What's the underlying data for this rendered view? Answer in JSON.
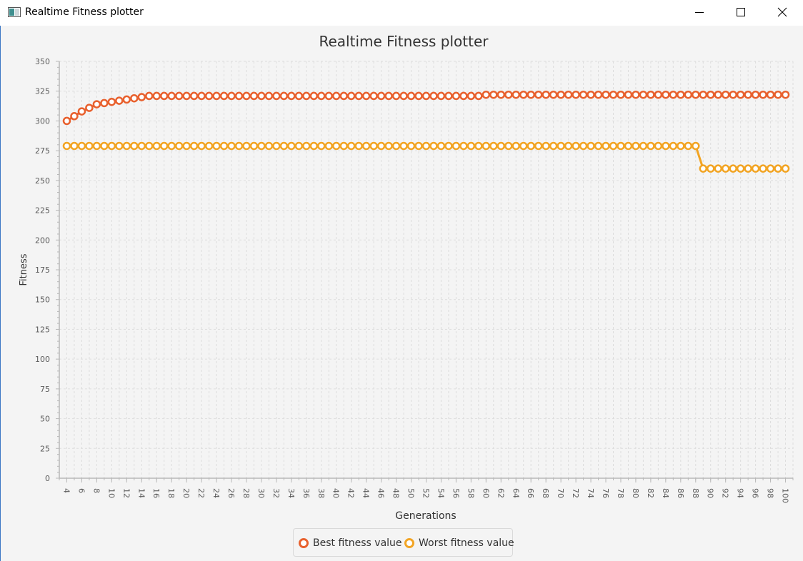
{
  "window": {
    "title": "Realtime Fitness plotter",
    "icon": "java-app-icon",
    "controls": [
      "minimize-icon",
      "maximize-icon",
      "close-icon"
    ]
  },
  "colors": {
    "best": "#e8602d",
    "worst": "#f2a423",
    "grid": "#dddddd",
    "axis": "#b8b8b8",
    "text": "#5a5a5a"
  },
  "chart_data": {
    "type": "line",
    "title": "Realtime Fitness plotter",
    "xlabel": "Generations",
    "ylabel": "Fitness",
    "xlim": [
      3,
      101
    ],
    "ylim": [
      0,
      350
    ],
    "ytick_step": 25,
    "xtick_start": 4,
    "xtick_step": 2,
    "grid": true,
    "legend": "bottom-center",
    "series": [
      {
        "name": "Best fitness value",
        "x": [
          4,
          5,
          6,
          7,
          8,
          9,
          10,
          11,
          12,
          13,
          14,
          15,
          16,
          17,
          18,
          19,
          20,
          21,
          22,
          23,
          24,
          25,
          26,
          27,
          28,
          29,
          30,
          31,
          32,
          33,
          34,
          35,
          36,
          37,
          38,
          39,
          40,
          41,
          42,
          43,
          44,
          45,
          46,
          47,
          48,
          49,
          50,
          51,
          52,
          53,
          54,
          55,
          56,
          57,
          58,
          59,
          60,
          61,
          62,
          63,
          64,
          65,
          66,
          67,
          68,
          69,
          70,
          71,
          72,
          73,
          74,
          75,
          76,
          77,
          78,
          79,
          80,
          81,
          82,
          83,
          84,
          85,
          86,
          87,
          88,
          89,
          90,
          91,
          92,
          93,
          94,
          95,
          96,
          97,
          98,
          99,
          100
        ],
        "y": [
          300,
          304,
          308,
          311,
          314,
          315,
          316,
          317,
          318,
          319,
          320,
          321,
          321,
          321,
          321,
          321,
          321,
          321,
          321,
          321,
          321,
          321,
          321,
          321,
          321,
          321,
          321,
          321,
          321,
          321,
          321,
          321,
          321,
          321,
          321,
          321,
          321,
          321,
          321,
          321,
          321,
          321,
          321,
          321,
          321,
          321,
          321,
          321,
          321,
          321,
          321,
          321,
          321,
          321,
          321,
          321,
          322,
          322,
          322,
          322,
          322,
          322,
          322,
          322,
          322,
          322,
          322,
          322,
          322,
          322,
          322,
          322,
          322,
          322,
          322,
          322,
          322,
          322,
          322,
          322,
          322,
          322,
          322,
          322,
          322,
          322,
          322,
          322,
          322,
          322,
          322,
          322,
          322,
          322,
          322,
          322,
          322
        ]
      },
      {
        "name": "Worst fitness value",
        "x": [
          4,
          5,
          6,
          7,
          8,
          9,
          10,
          11,
          12,
          13,
          14,
          15,
          16,
          17,
          18,
          19,
          20,
          21,
          22,
          23,
          24,
          25,
          26,
          27,
          28,
          29,
          30,
          31,
          32,
          33,
          34,
          35,
          36,
          37,
          38,
          39,
          40,
          41,
          42,
          43,
          44,
          45,
          46,
          47,
          48,
          49,
          50,
          51,
          52,
          53,
          54,
          55,
          56,
          57,
          58,
          59,
          60,
          61,
          62,
          63,
          64,
          65,
          66,
          67,
          68,
          69,
          70,
          71,
          72,
          73,
          74,
          75,
          76,
          77,
          78,
          79,
          80,
          81,
          82,
          83,
          84,
          85,
          86,
          87,
          88,
          89,
          90,
          91,
          92,
          93,
          94,
          95,
          96,
          97,
          98,
          99,
          100
        ],
        "y": [
          279,
          279,
          279,
          279,
          279,
          279,
          279,
          279,
          279,
          279,
          279,
          279,
          279,
          279,
          279,
          279,
          279,
          279,
          279,
          279,
          279,
          279,
          279,
          279,
          279,
          279,
          279,
          279,
          279,
          279,
          279,
          279,
          279,
          279,
          279,
          279,
          279,
          279,
          279,
          279,
          279,
          279,
          279,
          279,
          279,
          279,
          279,
          279,
          279,
          279,
          279,
          279,
          279,
          279,
          279,
          279,
          279,
          279,
          279,
          279,
          279,
          279,
          279,
          279,
          279,
          279,
          279,
          279,
          279,
          279,
          279,
          279,
          279,
          279,
          279,
          279,
          279,
          279,
          279,
          279,
          279,
          279,
          279,
          279,
          279,
          260,
          260,
          260,
          260,
          260,
          260,
          260,
          260,
          260,
          260,
          260,
          260
        ]
      }
    ]
  }
}
